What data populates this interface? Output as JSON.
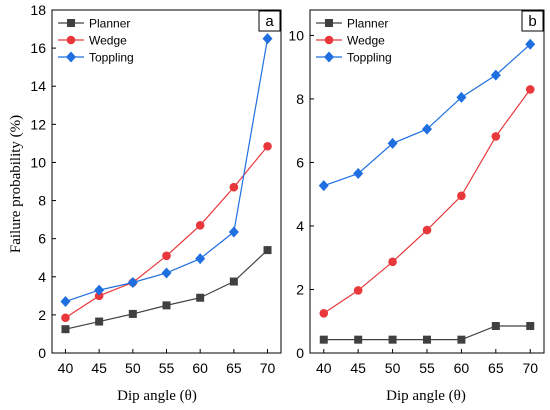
{
  "figure": {
    "ylabel": "Failure probability (%)",
    "xlabel": "Dip angle (θ)"
  },
  "colors": {
    "Planner": "#404040",
    "Wedge": "#e8383c",
    "Toppling": "#1f6fe0"
  },
  "markers": {
    "Planner": "square",
    "Wedge": "circle",
    "Toppling": "diamond"
  },
  "chart_data": [
    {
      "type": "line",
      "panel_label": "a",
      "xlabel": "Dip angle (θ)",
      "ylabel": "Failure probability (%)",
      "x": [
        40,
        45,
        50,
        55,
        60,
        65,
        70
      ],
      "xlim": [
        38,
        72
      ],
      "ylim": [
        0,
        18
      ],
      "xticks": [
        40,
        45,
        50,
        55,
        60,
        65,
        70
      ],
      "yticks": [
        0,
        2,
        4,
        6,
        8,
        10,
        12,
        14,
        16,
        18
      ],
      "legend_position": "top-left",
      "grid": false,
      "series": [
        {
          "name": "Planner",
          "values": [
            1.25,
            1.65,
            2.05,
            2.5,
            2.9,
            3.75,
            5.4
          ]
        },
        {
          "name": "Wedge",
          "values": [
            1.85,
            3.0,
            3.7,
            5.1,
            6.7,
            8.7,
            10.85
          ]
        },
        {
          "name": "Toppling",
          "values": [
            2.7,
            3.3,
            3.7,
            4.2,
            4.95,
            6.35,
            16.5
          ]
        }
      ]
    },
    {
      "type": "line",
      "panel_label": "b",
      "xlabel": "Dip angle (θ)",
      "ylabel": "",
      "x": [
        40,
        45,
        50,
        55,
        60,
        65,
        70
      ],
      "xlim": [
        38,
        72
      ],
      "ylim": [
        0,
        10.8
      ],
      "xticks": [
        40,
        45,
        50,
        55,
        60,
        65,
        70
      ],
      "yticks": [
        0,
        2,
        4,
        6,
        8,
        10
      ],
      "legend_position": "top-left",
      "grid": false,
      "series": [
        {
          "name": "Planner",
          "values": [
            0.42,
            0.42,
            0.42,
            0.42,
            0.42,
            0.85,
            0.85
          ]
        },
        {
          "name": "Wedge",
          "values": [
            1.25,
            1.97,
            2.87,
            3.87,
            4.95,
            6.82,
            8.3
          ]
        },
        {
          "name": "Toppling",
          "values": [
            5.27,
            5.65,
            6.6,
            7.05,
            8.05,
            8.75,
            9.72
          ]
        }
      ]
    }
  ]
}
